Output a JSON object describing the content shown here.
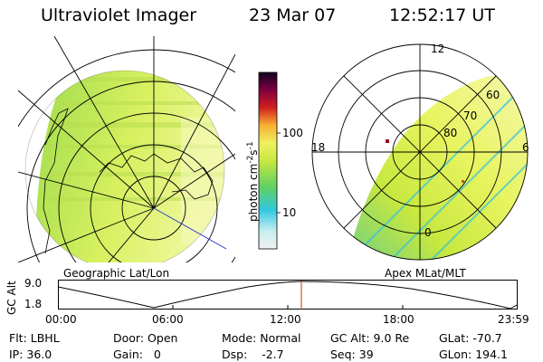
{
  "header": {
    "instrument": "Ultraviolet Imager",
    "date": "23 Mar 07",
    "time": "12:52:17 UT"
  },
  "left_panel": {
    "caption": "Geographic Lat/Lon"
  },
  "right_panel": {
    "caption": "Apex MLat/MLT",
    "mlt_labels": [
      "12",
      "18",
      "6",
      "0"
    ],
    "mlat_labels": [
      "60",
      "70",
      "80"
    ]
  },
  "colorbar": {
    "unit_label": "photon cm",
    "unit_exp1": "-2",
    "unit_s": "s",
    "unit_exp2": "-1",
    "tick_labels": [
      "100",
      "10"
    ]
  },
  "altitude_plot": {
    "ylabel": "GC Alt",
    "y_ticks": [
      "9.0",
      "1.8"
    ],
    "x_ticks": [
      "00:00",
      "06:00",
      "12:00",
      "18:00",
      "23:59"
    ],
    "marker_color": "#cc3300"
  },
  "info": {
    "row1": [
      {
        "label": "Flt:",
        "value": "LBHL"
      },
      {
        "label": "Door:",
        "value": "Open"
      },
      {
        "label": "Mode:",
        "value": "Normal"
      },
      {
        "label": "GC Alt:",
        "value": "9.0 Re"
      },
      {
        "label": "GLat:",
        "value": "-70.7"
      }
    ],
    "row2": [
      {
        "label": "IP:",
        "value": "36.0"
      },
      {
        "label": "Gain:",
        "value": "0"
      },
      {
        "label": "Dsp:",
        "value": "-2.7"
      },
      {
        "label": "Seq:",
        "value": "39"
      },
      {
        "label": "GLon:",
        "value": "194.1"
      }
    ]
  }
}
